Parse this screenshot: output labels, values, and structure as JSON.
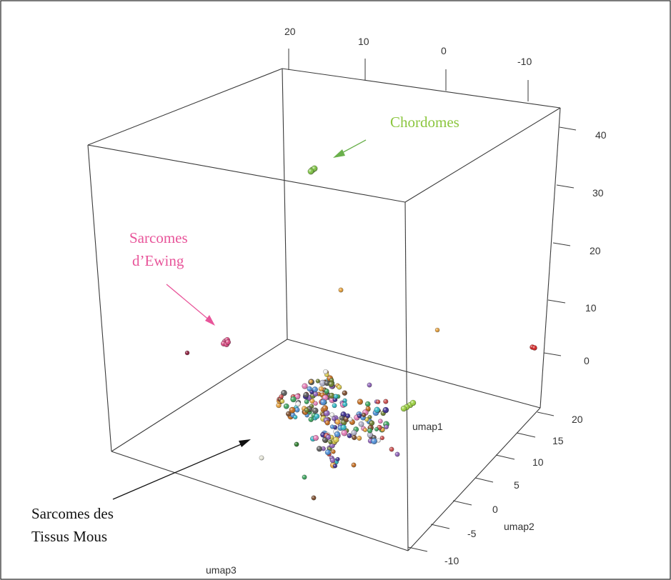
{
  "chart_data": {
    "type": "scatter",
    "dimensions": 3,
    "axes": {
      "x": {
        "label": "umap1",
        "ticks": [
          "20",
          "10",
          "0",
          "-10"
        ]
      },
      "y": {
        "label": "umap2",
        "ticks": [
          "20",
          "15",
          "10",
          "5",
          "0",
          "-5",
          "-10"
        ]
      },
      "z": {
        "label": "umap3",
        "ticks": [
          "40",
          "30",
          "20",
          "10",
          "0"
        ]
      }
    },
    "annotations": [
      {
        "text": "Chordomes",
        "color": "#8cc63f"
      },
      {
        "text": "Sarcomes",
        "color": "#e8559a"
      },
      {
        "text": "d’Ewing",
        "color": "#e8559a"
      },
      {
        "text": "Sarcomes des",
        "color": "#111111"
      },
      {
        "text": "Tissus Mous",
        "color": "#111111"
      }
    ],
    "groups": [
      {
        "group": "Chordomes",
        "color": "#7dc242"
      },
      {
        "group": "Sarcomes d’Ewing",
        "color": "#d9467f"
      },
      {
        "group": "Sarcomes des Tissus Mous",
        "color": "multicolor"
      }
    ]
  }
}
